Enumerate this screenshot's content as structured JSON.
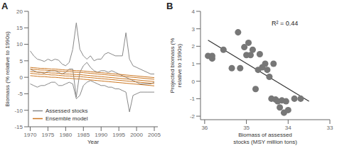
{
  "chart_data": [
    {
      "type": "line",
      "title": "A",
      "x_label": "Year",
      "y_label": "Biomass (% relative to 1990s)",
      "x": [
        1970,
        1971,
        1972,
        1973,
        1974,
        1975,
        1976,
        1977,
        1978,
        1979,
        1980,
        1981,
        1982,
        1983,
        1984,
        1985,
        1986,
        1987,
        1988,
        1989,
        1990,
        1991,
        1992,
        1993,
        1994,
        1995,
        1996,
        1997,
        1998,
        1999,
        2000,
        2001,
        2002,
        2003,
        2004,
        2005
      ],
      "series": [
        {
          "name": "Assessed stocks",
          "color": "#888888",
          "values": [
            8.0,
            6.5,
            5.5,
            5.2,
            4.8,
            5.5,
            5.0,
            5.5,
            5.2,
            4.0,
            3.5,
            4.5,
            8.5,
            16.5,
            8.5,
            6.5,
            5.5,
            6.5,
            5.0,
            5.5,
            5.5,
            7.0,
            7.5,
            7.0,
            6.5,
            6.5,
            6.5,
            13.5,
            5.5,
            3.5,
            3.0,
            2.5,
            2.0,
            1.5,
            1.0,
            1.0
          ]
        },
        {
          "name": "Assessed stocks",
          "color": "#888888",
          "values": [
            2.5,
            2.0,
            1.5,
            1.5,
            1.2,
            1.8,
            2.0,
            2.0,
            1.5,
            1.0,
            1.5,
            2.5,
            2.5,
            -6.0,
            1.5,
            3.5,
            4.5,
            3.0,
            2.0,
            1.5,
            2.0,
            2.0,
            1.5,
            2.0,
            1.5,
            1.0,
            0.5,
            0.0,
            -0.5,
            -1.0,
            -1.5,
            -2.0,
            -2.0,
            -2.0,
            -2.0,
            -1.5
          ]
        },
        {
          "name": "Assessed stocks",
          "color": "#888888",
          "values": [
            -2.0,
            -2.5,
            -3.0,
            -2.5,
            -2.5,
            -2.0,
            -1.5,
            -1.5,
            -2.5,
            -2.5,
            -2.0,
            -1.5,
            -2.0,
            -6.5,
            -5.5,
            -2.5,
            -1.5,
            -1.0,
            -1.5,
            -2.0,
            -2.5,
            -2.5,
            -3.0,
            -3.0,
            -3.5,
            -3.5,
            -4.0,
            -4.5,
            -10.5,
            -5.5,
            -5.0,
            -4.5,
            -4.5,
            -4.5,
            -4.5,
            -4.5
          ]
        },
        {
          "name": "Ensemble model",
          "color": "#cc7722",
          "values": [
            3.0,
            2.9,
            2.8,
            2.7,
            2.7,
            2.6,
            2.5,
            2.5,
            2.4,
            2.3,
            2.2,
            2.2,
            2.1,
            2.0,
            2.0,
            1.9,
            1.8,
            1.7,
            1.6,
            1.5,
            1.4,
            1.3,
            1.2,
            1.1,
            1.0,
            0.9,
            0.8,
            0.7,
            0.6,
            0.5,
            0.4,
            0.3,
            0.2,
            0.1,
            0.0,
            -0.1
          ]
        },
        {
          "name": "Ensemble model",
          "color": "#cc7722",
          "values": [
            2.5,
            2.4,
            2.3,
            2.2,
            2.2,
            2.1,
            2.0,
            2.0,
            1.9,
            1.8,
            1.7,
            1.7,
            1.6,
            1.5,
            1.5,
            1.4,
            1.3,
            1.2,
            1.1,
            1.0,
            0.9,
            0.8,
            0.7,
            0.6,
            0.5,
            0.4,
            0.3,
            0.2,
            0.1,
            0.0,
            -0.1,
            -0.2,
            -0.3,
            -0.4,
            -0.5,
            -0.6
          ]
        },
        {
          "name": "Ensemble model",
          "color": "#cc7722",
          "values": [
            1.8,
            1.7,
            1.6,
            1.5,
            1.5,
            1.4,
            1.3,
            1.3,
            1.2,
            1.1,
            1.0,
            1.0,
            0.9,
            0.8,
            0.8,
            0.7,
            0.6,
            0.5,
            0.4,
            0.3,
            0.2,
            0.1,
            0.0,
            -0.1,
            -0.2,
            -0.3,
            -0.4,
            -0.5,
            -0.6,
            -0.7,
            -0.8,
            -0.9,
            -1.0,
            -1.1,
            -1.2,
            -1.3
          ]
        },
        {
          "name": "Ensemble model",
          "color": "#cc7722",
          "values": [
            1.2,
            1.1,
            1.0,
            0.9,
            0.9,
            0.8,
            0.7,
            0.7,
            0.6,
            0.5,
            0.4,
            0.4,
            0.3,
            0.2,
            0.2,
            0.1,
            0.0,
            -0.1,
            -0.2,
            -0.3,
            -0.4,
            -0.5,
            -0.6,
            -0.7,
            -0.8,
            -0.9,
            -1.0,
            -1.1,
            -1.2,
            -1.3,
            -1.4,
            -1.5,
            -1.6,
            -1.7,
            -1.8,
            -1.9
          ]
        },
        {
          "name": "Ensemble model",
          "color": "#cc7722",
          "values": [
            0.5,
            0.4,
            0.3,
            0.2,
            0.2,
            0.1,
            0.0,
            0.0,
            -0.1,
            -0.2,
            -0.3,
            -0.3,
            -0.4,
            -0.5,
            -0.5,
            -0.6,
            -0.7,
            -0.8,
            -0.9,
            -1.0,
            -1.1,
            -1.2,
            -1.3,
            -1.4,
            -1.5,
            -1.6,
            -1.7,
            -1.8,
            -1.9,
            -2.0,
            -2.1,
            -2.2,
            -2.3,
            -2.4,
            -2.5,
            -2.6
          ]
        }
      ],
      "xlim": [
        1969.5,
        2006
      ],
      "ylim": [
        -15,
        20
      ],
      "xticks": [
        1970,
        1975,
        1980,
        1985,
        1990,
        1995,
        2000,
        2005
      ],
      "yticks": [
        -15,
        -10,
        -5,
        0,
        5,
        10,
        15,
        20
      ],
      "legend": "lower left",
      "grid": false
    },
    {
      "type": "scatter",
      "title": "B",
      "x_label": "Biomass of assessed stocks (MSY million tons)",
      "y_label": "Projected biomass (% relative to 1990s)",
      "annotations": [
        "R² = 0.44"
      ],
      "series": [
        {
          "type": "scatter",
          "color": "#777777",
          "x": [
            35.92,
            35.82,
            35.82,
            35.55,
            35.35,
            35.2,
            35.15,
            35.05,
            35.0,
            34.95,
            34.9,
            34.85,
            34.78,
            34.72,
            34.68,
            34.62,
            34.55,
            34.5,
            34.45,
            34.4,
            34.35,
            34.3,
            34.25,
            34.2,
            34.15,
            34.1,
            34.05,
            34.0,
            33.85,
            33.7
          ],
          "values": [
            1.45,
            1.45,
            1.3,
            1.8,
            0.75,
            2.8,
            0.75,
            1.95,
            1.5,
            2.2,
            1.5,
            1.8,
            -0.45,
            0.65,
            1.55,
            0.8,
            1.0,
            0.65,
            0.25,
            -1.0,
            1.0,
            -1.05,
            -1.15,
            -1.5,
            -1.1,
            -1.8,
            -1.15,
            -1.65,
            -1.0,
            -1.0
          ]
        },
        {
          "type": "line",
          "color": "#333333",
          "x": [
            35.92,
            33.5
          ],
          "values": [
            2.35,
            -1.15
          ]
        }
      ],
      "xlim": [
        36.1,
        33.0
      ],
      "ylim": [
        -2.2,
        4.0
      ],
      "xticks": [
        36,
        35,
        34,
        33
      ],
      "yticks": [
        -2,
        -1,
        0,
        1,
        2,
        3,
        4
      ],
      "grid": false
    }
  ]
}
